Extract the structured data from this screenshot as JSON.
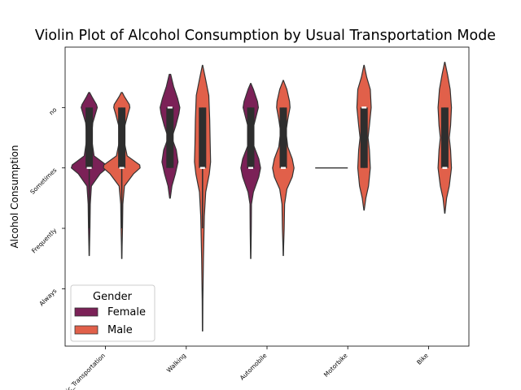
{
  "chart_data": {
    "type": "violin",
    "title": "Violin Plot of Alcohol Consumption by Usual Transportation Mode",
    "xlabel": "",
    "ylabel": "Alcohol Consumption",
    "categories": [
      "Public_Transportation",
      "Walking",
      "Automobile",
      "Motorbike",
      "Bike"
    ],
    "y_categories": [
      "no",
      "Sometimes",
      "Frequently",
      "Always"
    ],
    "y_values": [
      0,
      1,
      2,
      3
    ],
    "ylim": [
      -1.0,
      3.95
    ],
    "legend": {
      "title": "Gender",
      "position": "lower-left",
      "entries": [
        {
          "name": "Female",
          "color": "#7b2157"
        },
        {
          "name": "Male",
          "color": "#e1604a"
        }
      ]
    },
    "series": [
      {
        "name": "Female",
        "color": "#7b2157",
        "violins": [
          {
            "category": "Public_Transportation",
            "profile": [
              [
                -0.25,
                0.005
              ],
              [
                -0.18,
                0.03
              ],
              [
                -0.05,
                0.08
              ],
              [
                0.0,
                0.09
              ],
              [
                0.1,
                0.07
              ],
              [
                0.25,
                0.04
              ],
              [
                0.5,
                0.025
              ],
              [
                0.8,
                0.055
              ],
              [
                0.95,
                0.19
              ],
              [
                1.0,
                0.2
              ],
              [
                1.1,
                0.12
              ],
              [
                1.3,
                0.025
              ],
              [
                1.6,
                0.012
              ],
              [
                2.0,
                0.008
              ],
              [
                2.3,
                0.004
              ],
              [
                2.45,
                0.002
              ]
            ],
            "q1": 0,
            "median": 1,
            "q3": 1,
            "whisker": [
              0,
              2.0
            ]
          },
          {
            "category": "Walking",
            "profile": [
              [
                -0.55,
                0.008
              ],
              [
                -0.35,
                0.04
              ],
              [
                -0.15,
                0.085
              ],
              [
                0.0,
                0.11
              ],
              [
                0.1,
                0.1
              ],
              [
                0.3,
                0.065
              ],
              [
                0.5,
                0.02
              ],
              [
                0.7,
                0.07
              ],
              [
                0.9,
                0.09
              ],
              [
                1.1,
                0.06
              ],
              [
                1.3,
                0.022
              ],
              [
                1.5,
                0.004
              ]
            ],
            "q1": 0,
            "median": 0,
            "q3": 1,
            "whisker": [
              0,
              1
            ]
          },
          {
            "category": "Automobile",
            "profile": [
              [
                -0.4,
                0.002
              ],
              [
                -0.3,
                0.03
              ],
              [
                -0.1,
                0.075
              ],
              [
                0.0,
                0.085
              ],
              [
                0.15,
                0.06
              ],
              [
                0.35,
                0.025
              ],
              [
                0.6,
                0.025
              ],
              [
                0.85,
                0.09
              ],
              [
                1.0,
                0.11
              ],
              [
                1.15,
                0.09
              ],
              [
                1.4,
                0.03
              ],
              [
                1.6,
                0.008
              ],
              [
                2.0,
                0.006
              ],
              [
                2.3,
                0.004
              ],
              [
                2.5,
                0.002
              ]
            ],
            "q1": 0,
            "median": 1,
            "q3": 1,
            "whisker": [
              0,
              1
            ]
          },
          {
            "category": "Motorbike",
            "profile": [],
            "point": 1,
            "q1": 1,
            "median": 1,
            "q3": 1,
            "whisker": [
              1,
              1
            ]
          }
        ]
      },
      {
        "name": "Male",
        "color": "#e1604a",
        "violins": [
          {
            "category": "Public_Transportation",
            "profile": [
              [
                -0.25,
                0.005
              ],
              [
                -0.18,
                0.03
              ],
              [
                -0.05,
                0.085
              ],
              [
                0.0,
                0.09
              ],
              [
                0.1,
                0.07
              ],
              [
                0.3,
                0.035
              ],
              [
                0.55,
                0.025
              ],
              [
                0.8,
                0.06
              ],
              [
                0.95,
                0.2
              ],
              [
                1.0,
                0.205
              ],
              [
                1.1,
                0.13
              ],
              [
                1.3,
                0.03
              ],
              [
                1.6,
                0.012
              ],
              [
                2.0,
                0.008
              ],
              [
                2.3,
                0.004
              ],
              [
                2.5,
                0.002
              ]
            ],
            "q1": 0,
            "median": 1,
            "q3": 1,
            "whisker": [
              0,
              2.0
            ]
          },
          {
            "category": "Walking",
            "profile": [
              [
                -0.7,
                0.002
              ],
              [
                -0.5,
                0.03
              ],
              [
                -0.2,
                0.07
              ],
              [
                0.2,
                0.08
              ],
              [
                0.6,
                0.085
              ],
              [
                0.9,
                0.09
              ],
              [
                1.1,
                0.075
              ],
              [
                1.4,
                0.035
              ],
              [
                1.8,
                0.02
              ],
              [
                2.5,
                0.01
              ],
              [
                3.2,
                0.004
              ],
              [
                3.7,
                0.002
              ]
            ],
            "q1": 0,
            "median": 1,
            "q3": 1,
            "whisker": [
              0,
              2.0
            ]
          },
          {
            "category": "Automobile",
            "profile": [
              [
                -0.45,
                0.002
              ],
              [
                -0.3,
                0.04
              ],
              [
                -0.1,
                0.07
              ],
              [
                0.0,
                0.075
              ],
              [
                0.2,
                0.05
              ],
              [
                0.4,
                0.03
              ],
              [
                0.65,
                0.05
              ],
              [
                0.85,
                0.1
              ],
              [
                1.0,
                0.12
              ],
              [
                1.15,
                0.1
              ],
              [
                1.35,
                0.04
              ],
              [
                1.6,
                0.015
              ],
              [
                2.0,
                0.01
              ],
              [
                2.3,
                0.004
              ],
              [
                2.45,
                0.002
              ]
            ],
            "q1": 0,
            "median": 1,
            "q3": 1,
            "whisker": [
              0,
              1
            ]
          },
          {
            "category": "Motorbike",
            "profile": [
              [
                -0.7,
                0.002
              ],
              [
                -0.5,
                0.03
              ],
              [
                -0.3,
                0.07
              ],
              [
                0.0,
                0.08
              ],
              [
                0.3,
                0.06
              ],
              [
                0.5,
                0.045
              ],
              [
                0.7,
                0.06
              ],
              [
                1.0,
                0.07
              ],
              [
                1.3,
                0.05
              ],
              [
                1.5,
                0.02
              ],
              [
                1.7,
                0.002
              ]
            ],
            "q1": 0,
            "median": 0,
            "q3": 1,
            "whisker": [
              0,
              1
            ]
          },
          {
            "category": "Bike",
            "profile": [
              [
                -0.75,
                0.002
              ],
              [
                -0.55,
                0.03
              ],
              [
                -0.3,
                0.06
              ],
              [
                0.0,
                0.075
              ],
              [
                0.3,
                0.065
              ],
              [
                0.5,
                0.05
              ],
              [
                0.7,
                0.065
              ],
              [
                1.0,
                0.075
              ],
              [
                1.3,
                0.05
              ],
              [
                1.5,
                0.02
              ],
              [
                1.75,
                0.002
              ]
            ],
            "q1": 0,
            "median": 1,
            "q3": 1,
            "whisker": [
              0,
              1
            ]
          }
        ]
      }
    ],
    "grid": false
  }
}
